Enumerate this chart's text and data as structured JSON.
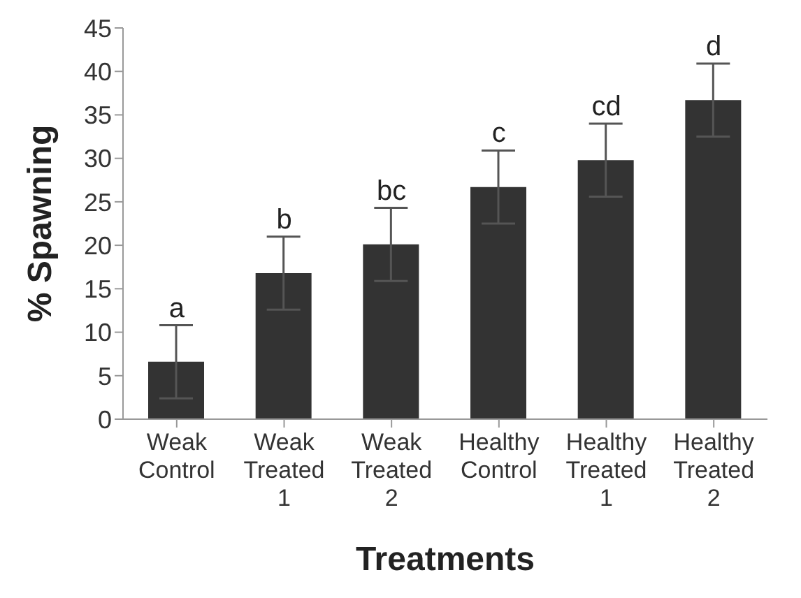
{
  "chart_data": {
    "type": "bar",
    "xlabel": "Treatments",
    "ylabel": "% Spawning",
    "categories": [
      "Weak Control",
      "Weak Treated 1",
      "Weak Treated 2",
      "Healthy Control",
      "Healthy Treated 1",
      "Healthy Treated 2"
    ],
    "values": [
      6.6,
      16.8,
      20.1,
      26.7,
      29.8,
      36.7
    ],
    "errors": [
      4.2,
      4.2,
      4.2,
      4.2,
      4.2,
      4.2
    ],
    "color": "#333333",
    "ylim": [
      0,
      45
    ],
    "yticks": [
      0,
      5,
      10,
      15,
      20,
      25,
      30,
      35,
      40,
      45
    ],
    "grid": false,
    "legend": false,
    "annotations": [
      {
        "text": "a",
        "x": "Weak Control",
        "y": 10.8
      },
      {
        "text": "b",
        "x": "Weak Treated 1",
        "y": 21
      },
      {
        "text": "bc",
        "x": "Weak Treated 2",
        "y": 24.3
      },
      {
        "text": "c",
        "x": "Healthy Control",
        "y": 30.9
      },
      {
        "text": "cd",
        "x": "Healthy Treated 1",
        "y": 34
      },
      {
        "text": "d",
        "x": "Healthy Treated 2",
        "y": 40.9
      }
    ]
  }
}
